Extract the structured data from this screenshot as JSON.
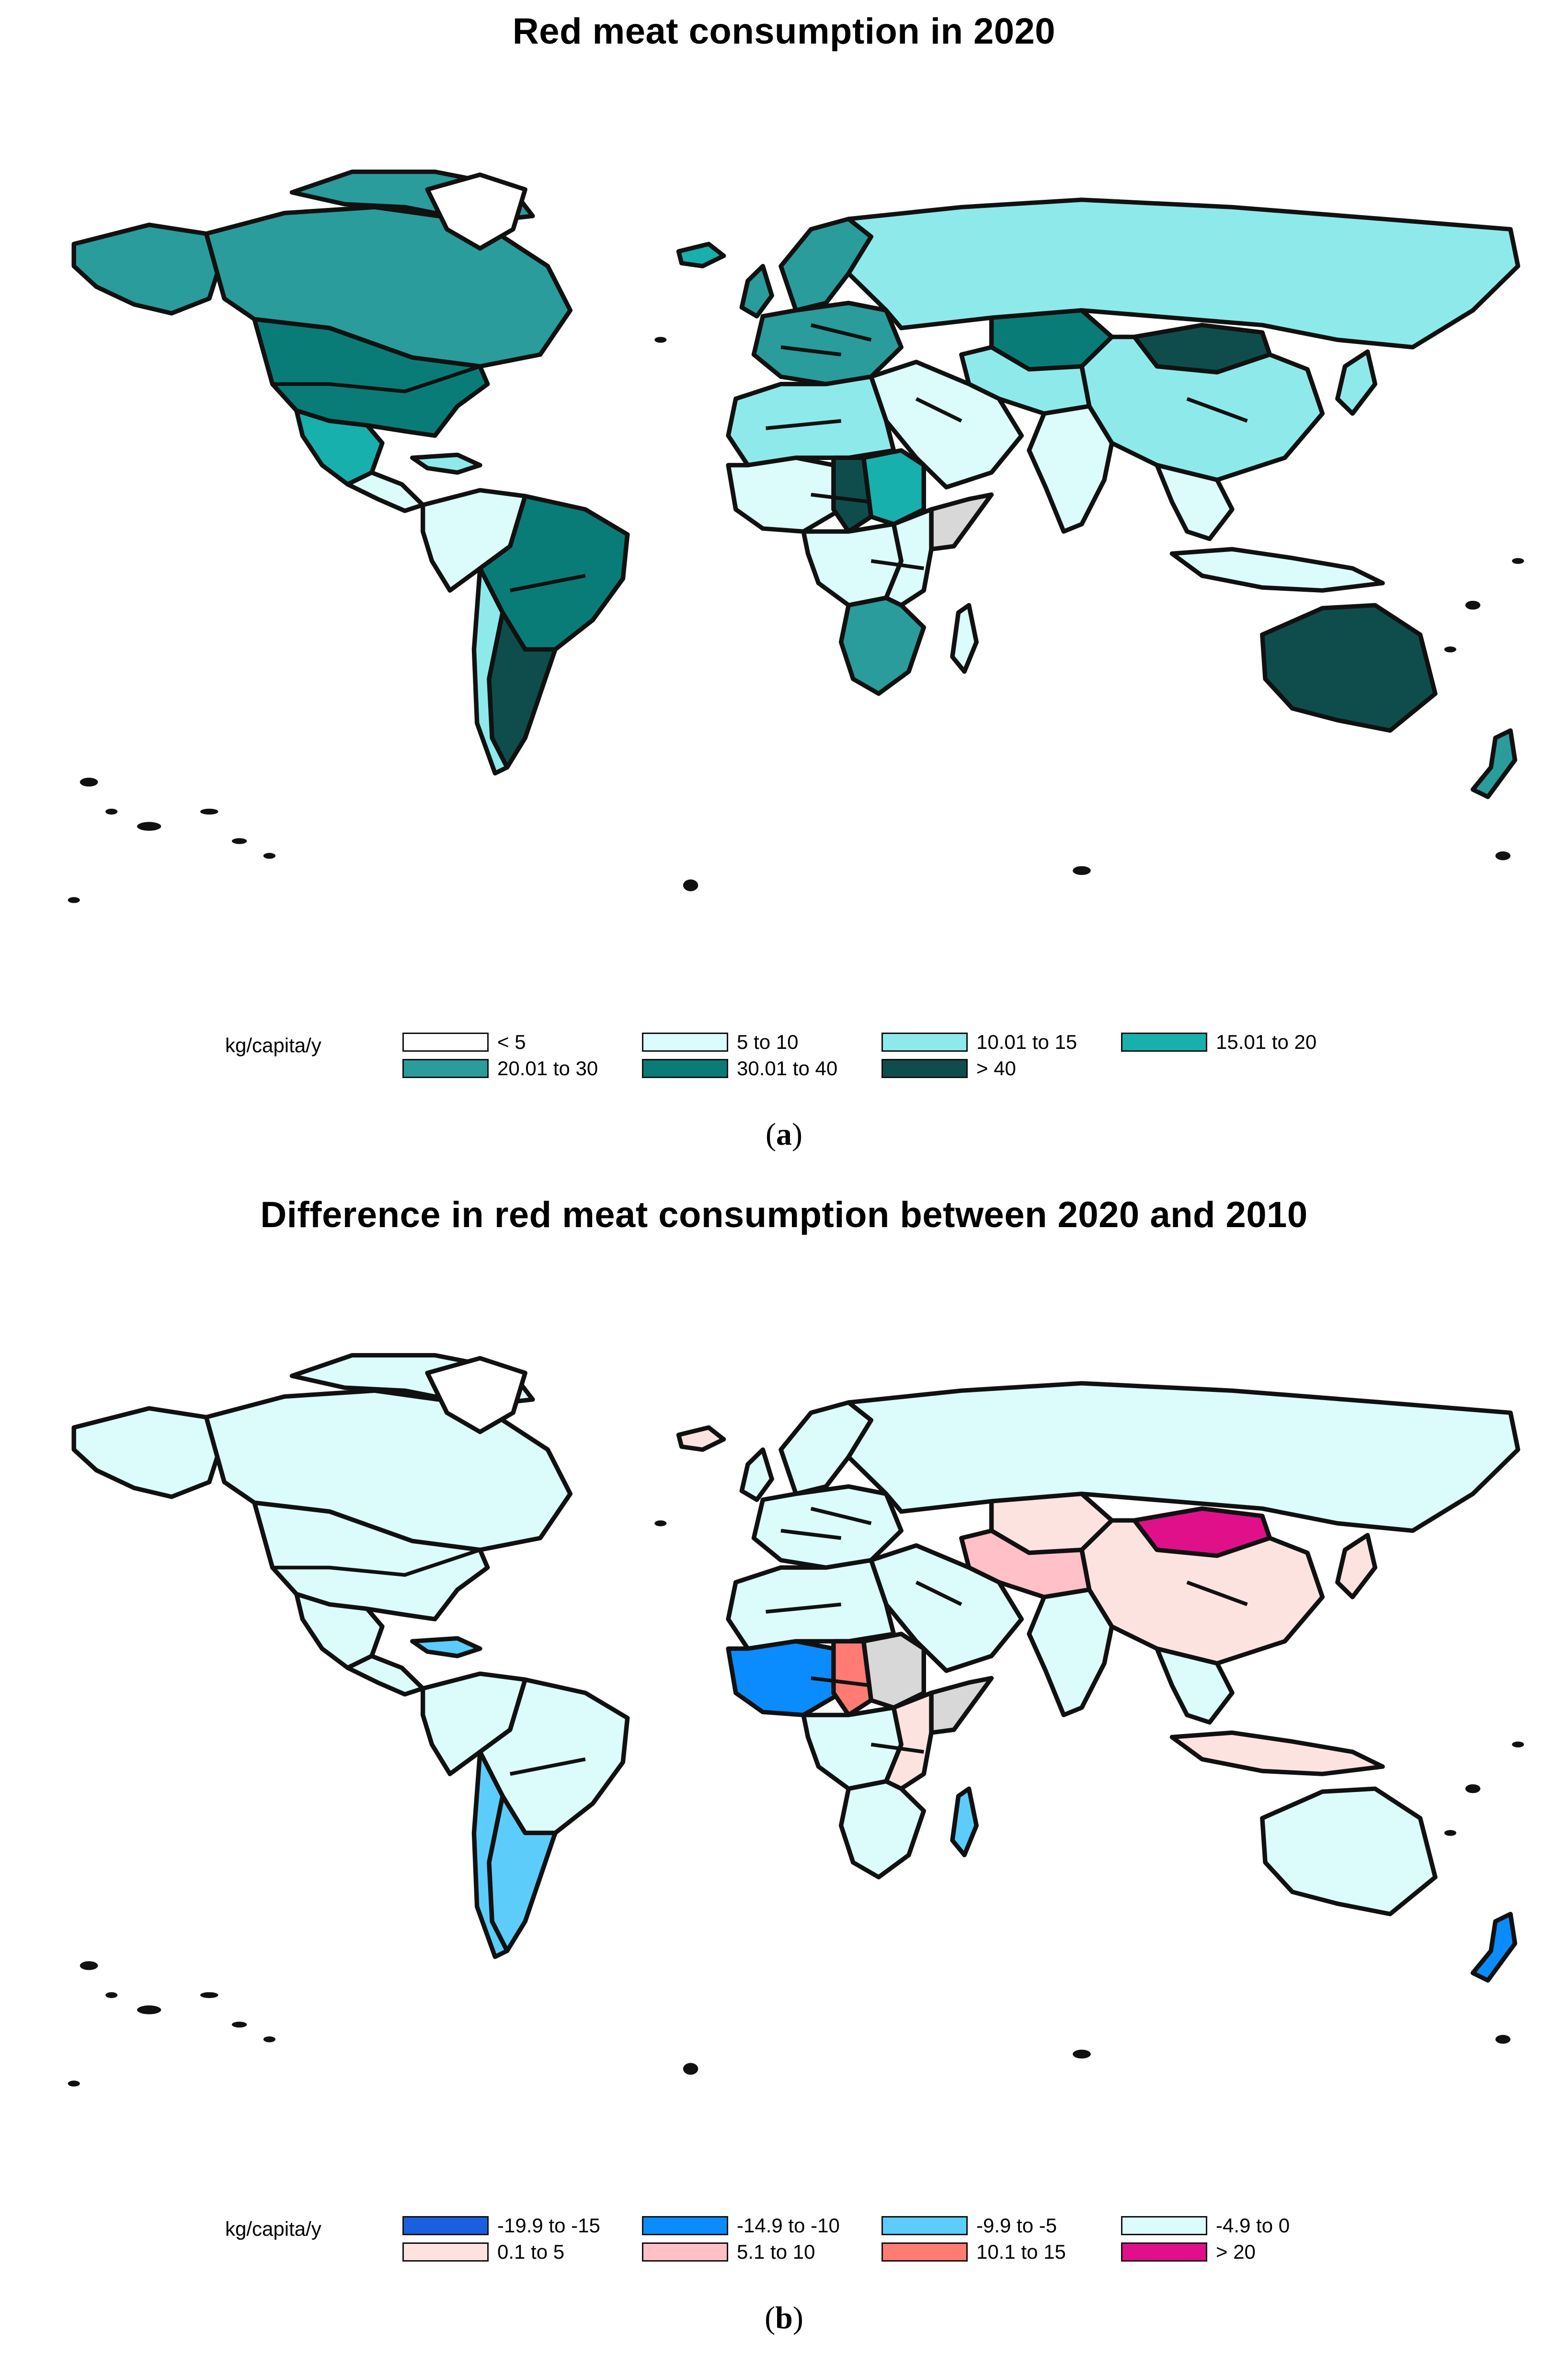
{
  "panels": [
    {
      "id": "a",
      "title": "Red meat consumption in 2020",
      "legend_title": "kg/capita/y",
      "legend": [
        {
          "label": "< 5",
          "color": "#ffffff"
        },
        {
          "label": "5 to 10",
          "color": "#dcfbfb"
        },
        {
          "label": "10.01 to 15",
          "color": "#8eeaea"
        },
        {
          "label": "15.01 to 20",
          "color": "#17b0ac"
        },
        {
          "label": "20.01 to 30",
          "color": "#2a9c9c"
        },
        {
          "label": "30.01 to 40",
          "color": "#0a7c78"
        },
        {
          "label": "> 40",
          "color": "#0f4d4d"
        }
      ],
      "caption_open": "(",
      "caption_letter": "a",
      "caption_close": ")",
      "regions": {
        "canada": "#2a9c9c",
        "alaska": "#2a9c9c",
        "arctic": "#2a9c9c",
        "usa": "#0a7c78",
        "mexico": "#17b0ac",
        "central_america": "#dcfbfb",
        "caribbean": "#8eeaea",
        "greenland": "#ffffff",
        "south_america": "#0a7c78",
        "northwest_sa": "#dcfbfb",
        "argentina": "#0f4d4d",
        "chile": "#8eeaea",
        "iceland": "#17b0ac",
        "europe": "#2a9c9c",
        "scandinavia": "#2a9c9c",
        "uk": "#2a9c9c",
        "russia": "#8eeaea",
        "kazakhstan": "#0a7c78",
        "mongolia": "#0f4d4d",
        "china": "#8eeaea",
        "japan": "#8eeaea",
        "india": "#dcfbfb",
        "se_asia": "#dcfbfb",
        "indonesia": "#dcfbfb",
        "middle_east": "#dcfbfb",
        "central_asia": "#8eeaea",
        "north_africa": "#8eeaea",
        "west_africa": "#dcfbfb",
        "chad": "#0f4d4d",
        "sudan": "#17b0ac",
        "somalia": "#d8d8d8",
        "central_africa": "#dcfbfb",
        "east_africa": "#dcfbfb",
        "southern_africa": "#2a9c9c",
        "madagascar": "#dcfbfb",
        "australia": "#0f4d4d",
        "new_zealand": "#2a9c9c"
      }
    },
    {
      "id": "b",
      "title": "Difference in red meat consumption between 2020 and 2010",
      "legend_title": "kg/capita/y",
      "legend": [
        {
          "label": "-19.9 to -15",
          "color": "#1a5fe0"
        },
        {
          "label": "-14.9 to -10",
          "color": "#0a8cff"
        },
        {
          "label": "-9.9 to -5",
          "color": "#5ccdfa"
        },
        {
          "label": "-4.9 to 0",
          "color": "#dcfbfb"
        },
        {
          "label": "0.1 to 5",
          "color": "#fde3e0"
        },
        {
          "label": "5.1 to 10",
          "color": "#ffc0c8"
        },
        {
          "label": "10.1 to 15",
          "color": "#ff7b73"
        },
        {
          "label": "> 20",
          "color": "#e0108a"
        }
      ],
      "caption_open": "(",
      "caption_letter": "b",
      "caption_close": ")",
      "regions": {
        "canada": "#dcfbfb",
        "alaska": "#dcfbfb",
        "arctic": "#dcfbfb",
        "usa": "#dcfbfb",
        "mexico": "#dcfbfb",
        "central_america": "#dcfbfb",
        "caribbean": "#5ccdfa",
        "greenland": "#ffffff",
        "south_america": "#dcfbfb",
        "northwest_sa": "#dcfbfb",
        "argentina": "#5ccdfa",
        "chile": "#5ccdfa",
        "iceland": "#fde3e0",
        "europe": "#dcfbfb",
        "scandinavia": "#dcfbfb",
        "uk": "#dcfbfb",
        "russia": "#dcfbfb",
        "kazakhstan": "#fde3e0",
        "mongolia": "#e0108a",
        "china": "#fde3e0",
        "japan": "#fde3e0",
        "india": "#dcfbfb",
        "se_asia": "#dcfbfb",
        "indonesia": "#fde3e0",
        "middle_east": "#dcfbfb",
        "central_asia": "#ffc0c8",
        "north_africa": "#dcfbfb",
        "west_africa": "#0a8cff",
        "chad": "#ff7b73",
        "sudan": "#d8d8d8",
        "somalia": "#d8d8d8",
        "central_africa": "#dcfbfb",
        "east_africa": "#fde3e0",
        "southern_africa": "#dcfbfb",
        "madagascar": "#5ccdfa",
        "australia": "#dcfbfb",
        "new_zealand": "#0a8cff"
      }
    }
  ]
}
